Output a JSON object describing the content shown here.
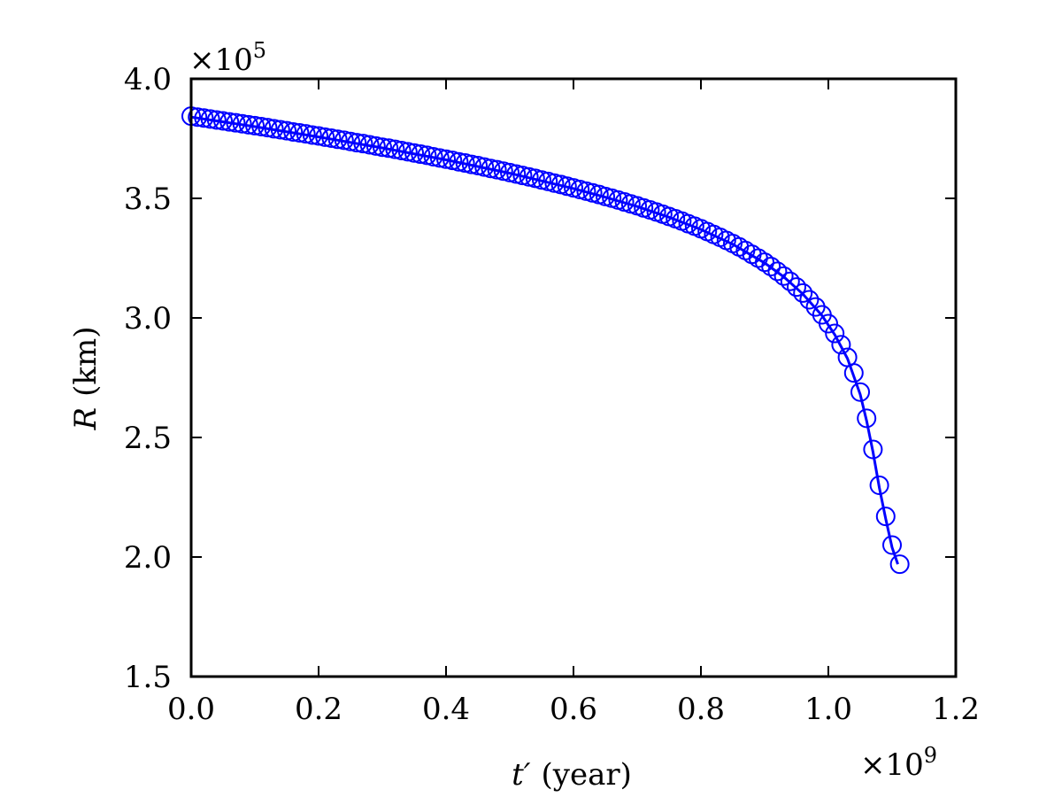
{
  "chart_data": {
    "type": "scatter",
    "title": "",
    "xlabel": "(year)",
    "xlabel_symbol": "t′",
    "ylabel": "(km)",
    "ylabel_symbol": "R",
    "x_multiplier": "×10",
    "x_multiplier_exp": "9",
    "y_multiplier": "×10",
    "y_multiplier_exp": "5",
    "xlim": [
      0.0,
      1.2
    ],
    "ylim": [
      1.5,
      4.0
    ],
    "x_ticks": [
      0.0,
      0.2,
      0.4,
      0.6,
      0.8,
      1.0,
      1.2
    ],
    "x_tick_labels": [
      "0.0",
      "0.2",
      "0.4",
      "0.6",
      "0.8",
      "1.0",
      "1.2"
    ],
    "y_ticks": [
      1.5,
      2.0,
      2.5,
      3.0,
      3.5,
      4.0
    ],
    "y_tick_labels": [
      "1.5",
      "2.0",
      "2.5",
      "3.0",
      "3.5",
      "4.0"
    ],
    "grid": false,
    "legend": "none",
    "series": [
      {
        "kind": "markers",
        "marker": "open-circle",
        "color": "#0000ff",
        "points": [
          [
            0.0,
            3.844
          ],
          [
            0.01,
            3.84
          ],
          [
            0.02,
            3.836
          ],
          [
            0.03,
            3.832
          ],
          [
            0.04,
            3.828
          ],
          [
            0.05,
            3.824
          ],
          [
            0.06,
            3.82
          ],
          [
            0.07,
            3.816
          ],
          [
            0.08,
            3.812
          ],
          [
            0.09,
            3.808
          ],
          [
            0.1,
            3.804
          ],
          [
            0.11,
            3.8
          ],
          [
            0.12,
            3.796
          ],
          [
            0.13,
            3.791
          ],
          [
            0.14,
            3.787
          ],
          [
            0.15,
            3.783
          ],
          [
            0.16,
            3.778
          ],
          [
            0.17,
            3.774
          ],
          [
            0.18,
            3.77
          ],
          [
            0.19,
            3.765
          ],
          [
            0.2,
            3.761
          ],
          [
            0.21,
            3.756
          ],
          [
            0.22,
            3.752
          ],
          [
            0.23,
            3.747
          ],
          [
            0.24,
            3.743
          ],
          [
            0.25,
            3.738
          ],
          [
            0.26,
            3.733
          ],
          [
            0.27,
            3.729
          ],
          [
            0.28,
            3.724
          ],
          [
            0.29,
            3.719
          ],
          [
            0.3,
            3.714
          ],
          [
            0.31,
            3.71
          ],
          [
            0.32,
            3.705
          ],
          [
            0.33,
            3.7
          ],
          [
            0.34,
            3.695
          ],
          [
            0.35,
            3.69
          ],
          [
            0.36,
            3.685
          ],
          [
            0.37,
            3.68
          ],
          [
            0.38,
            3.674
          ],
          [
            0.39,
            3.669
          ],
          [
            0.4,
            3.664
          ],
          [
            0.41,
            3.659
          ],
          [
            0.42,
            3.653
          ],
          [
            0.43,
            3.648
          ],
          [
            0.44,
            3.642
          ],
          [
            0.45,
            3.637
          ],
          [
            0.46,
            3.631
          ],
          [
            0.47,
            3.625
          ],
          [
            0.48,
            3.62
          ],
          [
            0.49,
            3.614
          ],
          [
            0.5,
            3.608
          ],
          [
            0.51,
            3.602
          ],
          [
            0.52,
            3.596
          ],
          [
            0.53,
            3.59
          ],
          [
            0.54,
            3.584
          ],
          [
            0.55,
            3.577
          ],
          [
            0.56,
            3.571
          ],
          [
            0.57,
            3.564
          ],
          [
            0.58,
            3.558
          ],
          [
            0.59,
            3.551
          ],
          [
            0.6,
            3.544
          ],
          [
            0.61,
            3.537
          ],
          [
            0.62,
            3.53
          ],
          [
            0.63,
            3.523
          ],
          [
            0.64,
            3.516
          ],
          [
            0.65,
            3.508
          ],
          [
            0.66,
            3.501
          ],
          [
            0.67,
            3.493
          ],
          [
            0.68,
            3.485
          ],
          [
            0.69,
            3.477
          ],
          [
            0.7,
            3.469
          ],
          [
            0.71,
            3.46
          ],
          [
            0.72,
            3.452
          ],
          [
            0.73,
            3.443
          ],
          [
            0.74,
            3.434
          ],
          [
            0.75,
            3.424
          ],
          [
            0.76,
            3.415
          ],
          [
            0.77,
            3.405
          ],
          [
            0.78,
            3.394
          ],
          [
            0.79,
            3.384
          ],
          [
            0.8,
            3.373
          ],
          [
            0.81,
            3.361
          ],
          [
            0.82,
            3.349
          ],
          [
            0.83,
            3.337
          ],
          [
            0.84,
            3.324
          ],
          [
            0.85,
            3.311
          ],
          [
            0.86,
            3.297
          ],
          [
            0.87,
            3.282
          ],
          [
            0.88,
            3.266
          ],
          [
            0.89,
            3.25
          ],
          [
            0.9,
            3.233
          ],
          [
            0.91,
            3.215
          ],
          [
            0.92,
            3.195
          ],
          [
            0.93,
            3.175
          ],
          [
            0.94,
            3.153
          ],
          [
            0.95,
            3.129
          ],
          [
            0.96,
            3.104
          ],
          [
            0.97,
            3.076
          ],
          [
            0.98,
            3.046
          ],
          [
            0.99,
            3.013
          ],
          [
            1.0,
            2.976
          ],
          [
            1.01,
            2.935
          ],
          [
            1.02,
            2.888
          ],
          [
            1.03,
            2.835
          ],
          [
            1.04,
            2.77
          ],
          [
            1.05,
            2.69
          ],
          [
            1.06,
            2.58
          ],
          [
            1.07,
            2.45
          ],
          [
            1.08,
            2.3
          ],
          [
            1.09,
            2.17
          ],
          [
            1.1,
            2.05
          ],
          [
            1.112,
            1.97
          ]
        ]
      },
      {
        "kind": "line",
        "color": "#0000ff",
        "points": [
          [
            0.0,
            3.84
          ],
          [
            0.1,
            3.8
          ],
          [
            0.2,
            3.757
          ],
          [
            0.3,
            3.711
          ],
          [
            0.4,
            3.661
          ],
          [
            0.5,
            3.605
          ],
          [
            0.6,
            3.541
          ],
          [
            0.65,
            3.505
          ],
          [
            0.7,
            3.466
          ],
          [
            0.75,
            3.421
          ],
          [
            0.8,
            3.37
          ],
          [
            0.85,
            3.308
          ],
          [
            0.9,
            3.23
          ],
          [
            0.93,
            3.172
          ],
          [
            0.96,
            3.1
          ],
          [
            0.99,
            3.01
          ],
          [
            1.01,
            2.93
          ],
          [
            1.03,
            2.83
          ],
          [
            1.05,
            2.68
          ],
          [
            1.06,
            2.57
          ],
          [
            1.07,
            2.44
          ],
          [
            1.08,
            2.29
          ],
          [
            1.09,
            2.16
          ],
          [
            1.1,
            2.04
          ],
          [
            1.109,
            1.97
          ]
        ]
      }
    ]
  }
}
